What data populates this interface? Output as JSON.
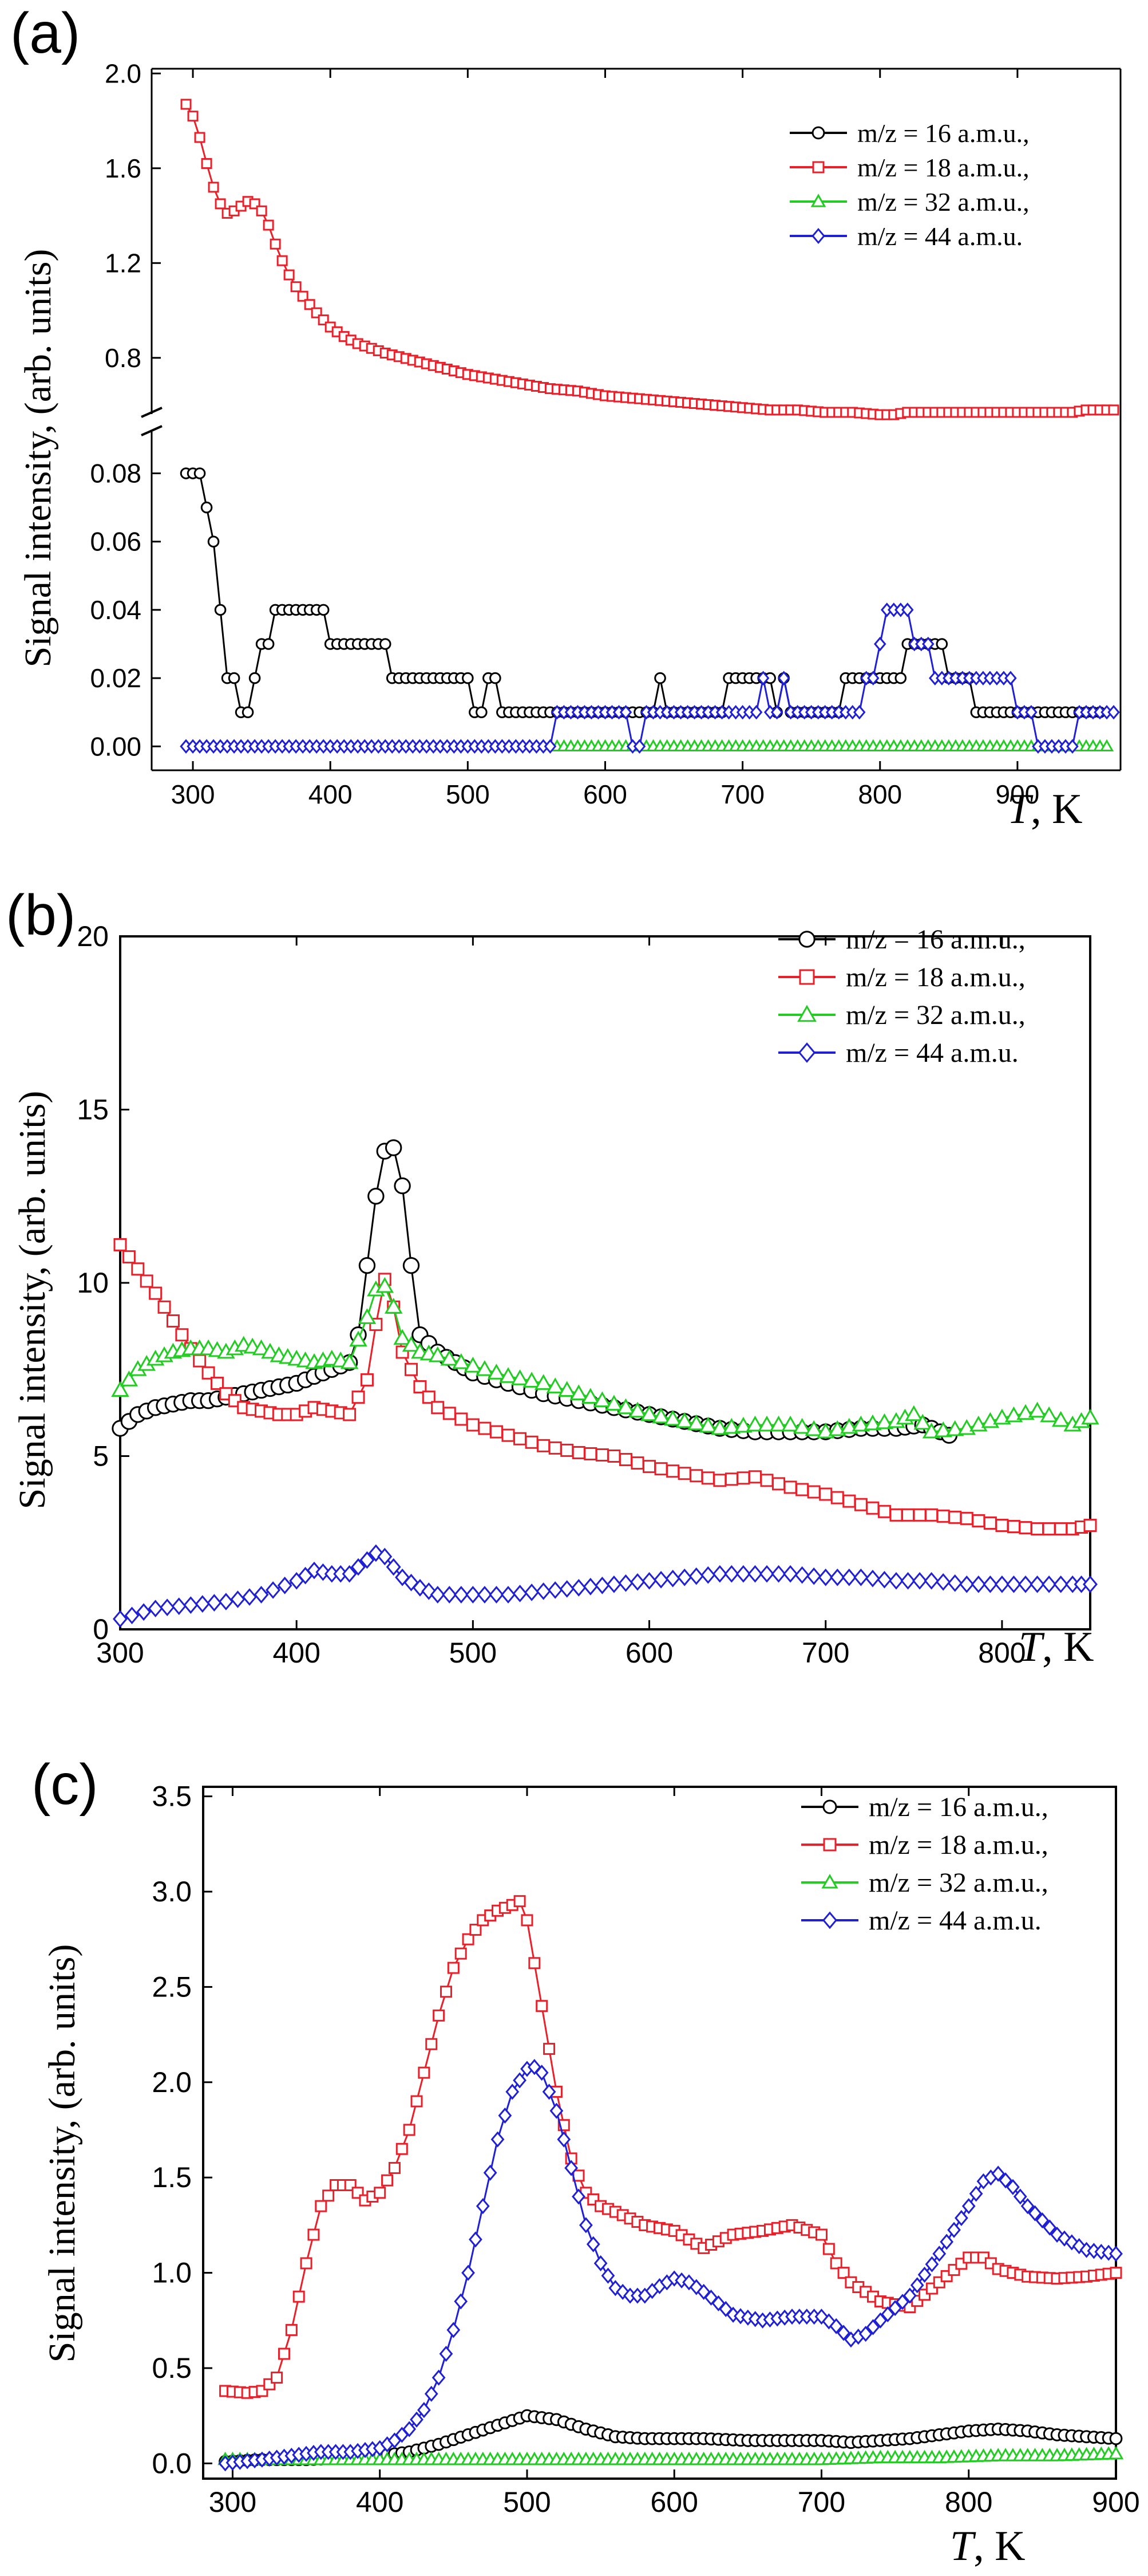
{
  "chart_data": [
    {
      "type": "line",
      "panel_label": "(a)",
      "ylabel": "Signal intensity, (arb. units)",
      "xlabel_italic": "T",
      "xlabel_unit": ", K",
      "xlim": [
        270,
        975
      ],
      "xticks": [
        "300",
        "400",
        "500",
        "600",
        "700",
        "800",
        "900"
      ],
      "ylim_lower": [
        -0.007,
        0.092
      ],
      "ylim_upper": [
        0.57,
        2.02
      ],
      "yticks_lower": [
        "0.00",
        "0.02",
        "0.04",
        "0.06",
        "0.08"
      ],
      "yticks_upper": [
        "0.8",
        "1.2",
        "1.6",
        "2.0"
      ],
      "axis_break": true,
      "legend_position": "top-right",
      "series": [
        {
          "name": "m/z = 16 a.m.u.,",
          "color": "#000000",
          "marker": "circle",
          "x": [
            295,
            305,
            310,
            315,
            320,
            325,
            330,
            335,
            340,
            345,
            350,
            355,
            360,
            375,
            390,
            400,
            410,
            420,
            430,
            445,
            460,
            480,
            500,
            505,
            510,
            515,
            520,
            525,
            540,
            560,
            580,
            600,
            620,
            635,
            640,
            645,
            650,
            680,
            690,
            700,
            715,
            720,
            725,
            730,
            735,
            745,
            760,
            770,
            775,
            785,
            800,
            820,
            840,
            850,
            860,
            870,
            880,
            900,
            920,
            940,
            960
          ],
          "y": [
            0.08,
            0.08,
            0.07,
            0.06,
            0.04,
            0.02,
            0.02,
            0.01,
            0.01,
            0.02,
            0.03,
            0.03,
            0.04,
            0.04,
            0.04,
            0.03,
            0.03,
            0.03,
            0.03,
            0.02,
            0.02,
            0.02,
            0.02,
            0.01,
            0.01,
            0.02,
            0.02,
            0.01,
            0.01,
            0.01,
            0.01,
            0.01,
            0.01,
            0.01,
            0.02,
            0.01,
            0.01,
            0.01,
            0.02,
            0.02,
            0.02,
            0.02,
            0.01,
            0.02,
            0.01,
            0.01,
            0.01,
            0.01,
            0.02,
            0.02,
            0.02,
            0.03,
            0.03,
            0.02,
            0.02,
            0.01,
            0.01,
            0.01,
            0.01,
            0.01,
            0.01
          ]
        },
        {
          "name": "m/z = 18 a.m.u.,",
          "color": "#e8202a",
          "marker": "square",
          "x": [
            295,
            300,
            305,
            310,
            315,
            320,
            325,
            330,
            335,
            340,
            345,
            350,
            355,
            360,
            365,
            370,
            375,
            380,
            390,
            400,
            410,
            420,
            440,
            460,
            480,
            500,
            520,
            540,
            560,
            580,
            600,
            620,
            640,
            660,
            680,
            700,
            720,
            740,
            760,
            780,
            800,
            810,
            820,
            840,
            860,
            880,
            900,
            920,
            940,
            950,
            960,
            970
          ],
          "y": [
            1.87,
            1.82,
            1.73,
            1.62,
            1.52,
            1.45,
            1.41,
            1.42,
            1.44,
            1.46,
            1.45,
            1.42,
            1.36,
            1.28,
            1.21,
            1.15,
            1.1,
            1.06,
            0.99,
            0.93,
            0.89,
            0.86,
            0.82,
            0.79,
            0.76,
            0.73,
            0.71,
            0.69,
            0.67,
            0.66,
            0.64,
            0.63,
            0.62,
            0.61,
            0.6,
            0.59,
            0.58,
            0.58,
            0.57,
            0.57,
            0.56,
            0.56,
            0.57,
            0.57,
            0.57,
            0.57,
            0.57,
            0.57,
            0.57,
            0.58,
            0.58,
            0.58
          ]
        },
        {
          "name": "m/z = 32 a.m.u.,",
          "color": "#22cc22",
          "marker": "triangle",
          "x": [
            565,
            600,
            650,
            700,
            750,
            800,
            850,
            900,
            950,
            965
          ],
          "y": [
            0.0,
            0.0,
            0.0,
            0.0,
            0.0,
            0.0,
            0.0,
            0.0,
            0.0,
            0.0
          ]
        },
        {
          "name": "m/z = 44 a.m.u.",
          "color": "#1f1fd6",
          "marker": "diamond",
          "x": [
            295,
            350,
            400,
            450,
            500,
            560,
            565,
            600,
            615,
            620,
            625,
            630,
            650,
            700,
            710,
            715,
            720,
            725,
            730,
            735,
            740,
            760,
            780,
            790,
            800,
            805,
            810,
            815,
            820,
            825,
            830,
            840,
            860,
            880,
            900,
            910,
            915,
            940,
            945,
            970
          ],
          "y": [
            0,
            0,
            0,
            0,
            0,
            0,
            0.01,
            0.01,
            0.01,
            0.0,
            0.0,
            0.01,
            0.01,
            0.01,
            0.01,
            0.02,
            0.01,
            0.01,
            0.02,
            0.01,
            0.01,
            0.01,
            0.01,
            0.02,
            0.03,
            0.04,
            0.04,
            0.04,
            0.04,
            0.03,
            0.03,
            0.02,
            0.02,
            0.02,
            0.01,
            0.01,
            0.0,
            0.0,
            0.01,
            0.01
          ]
        }
      ]
    },
    {
      "type": "line",
      "panel_label": "(b)",
      "ylabel": "Signal intensity, (arb. units)",
      "xlabel_italic": "T",
      "xlabel_unit": ", K",
      "xlim": [
        300,
        850
      ],
      "ylim": [
        0,
        20
      ],
      "xticks": [
        "300",
        "400",
        "500",
        "600",
        "700",
        "800"
      ],
      "yticks": [
        "0",
        "5",
        "10",
        "15",
        "20"
      ],
      "legend_position": "top-right",
      "series": [
        {
          "name": "m/z = 16 a.m.u.,",
          "color": "#000000",
          "marker": "circle",
          "x": [
            300,
            310,
            320,
            330,
            340,
            350,
            360,
            370,
            380,
            390,
            400,
            410,
            420,
            430,
            435,
            440,
            445,
            450,
            455,
            460,
            465,
            470,
            480,
            490,
            500,
            520,
            540,
            560,
            580,
            600,
            620,
            640,
            660,
            680,
            700,
            720,
            740,
            755,
            770
          ],
          "y": [
            5.8,
            6.2,
            6.4,
            6.5,
            6.6,
            6.6,
            6.7,
            6.8,
            6.9,
            7.0,
            7.1,
            7.3,
            7.5,
            7.7,
            8.5,
            10.5,
            12.5,
            13.8,
            13.9,
            12.8,
            10.5,
            8.5,
            8.0,
            7.7,
            7.4,
            7.1,
            6.8,
            6.6,
            6.4,
            6.2,
            6.0,
            5.8,
            5.7,
            5.7,
            5.7,
            5.8,
            5.8,
            5.9,
            5.6
          ]
        },
        {
          "name": "m/z = 18 a.m.u.,",
          "color": "#e8202a",
          "marker": "square",
          "x": [
            300,
            310,
            320,
            330,
            340,
            350,
            360,
            370,
            380,
            390,
            400,
            410,
            420,
            430,
            440,
            445,
            450,
            455,
            460,
            470,
            480,
            500,
            520,
            540,
            560,
            580,
            600,
            620,
            640,
            660,
            680,
            700,
            720,
            740,
            760,
            780,
            800,
            820,
            840,
            850
          ],
          "y": [
            11.1,
            10.4,
            9.7,
            8.9,
            8.1,
            7.4,
            6.8,
            6.4,
            6.3,
            6.2,
            6.2,
            6.4,
            6.3,
            6.2,
            7.2,
            8.8,
            10.1,
            9.3,
            8.0,
            7.0,
            6.4,
            5.9,
            5.6,
            5.3,
            5.1,
            5.0,
            4.7,
            4.5,
            4.3,
            4.4,
            4.1,
            3.9,
            3.6,
            3.3,
            3.3,
            3.2,
            3.0,
            2.9,
            2.9,
            3.0
          ]
        },
        {
          "name": "m/z = 32 a.m.u.,",
          "color": "#22cc22",
          "marker": "triangle",
          "x": [
            300,
            310,
            320,
            330,
            340,
            350,
            360,
            370,
            380,
            390,
            400,
            410,
            420,
            430,
            440,
            445,
            450,
            455,
            460,
            470,
            480,
            500,
            520,
            540,
            560,
            580,
            600,
            620,
            640,
            660,
            680,
            700,
            720,
            740,
            750,
            760,
            780,
            800,
            820,
            840,
            850
          ],
          "y": [
            6.9,
            7.5,
            7.8,
            8.0,
            8.1,
            8.1,
            8.0,
            8.2,
            8.1,
            7.9,
            7.8,
            7.7,
            7.8,
            7.7,
            9.0,
            9.8,
            9.9,
            9.3,
            8.4,
            8.0,
            7.9,
            7.6,
            7.3,
            7.1,
            6.8,
            6.5,
            6.2,
            6.0,
            5.8,
            5.9,
            5.9,
            5.7,
            5.9,
            6.0,
            6.2,
            5.7,
            5.8,
            6.1,
            6.3,
            5.9,
            6.1
          ]
        },
        {
          "name": "m/z = 44 a.m.u.",
          "color": "#1f1fd6",
          "marker": "diamond",
          "x": [
            300,
            320,
            340,
            360,
            380,
            400,
            410,
            420,
            430,
            440,
            445,
            450,
            455,
            460,
            470,
            480,
            500,
            520,
            540,
            560,
            580,
            600,
            620,
            640,
            660,
            680,
            700,
            720,
            740,
            760,
            780,
            800,
            820,
            840,
            850
          ],
          "y": [
            0.3,
            0.6,
            0.7,
            0.8,
            1.0,
            1.4,
            1.7,
            1.6,
            1.6,
            2.0,
            2.2,
            2.1,
            1.8,
            1.5,
            1.2,
            1.0,
            1.0,
            1.0,
            1.1,
            1.2,
            1.3,
            1.4,
            1.5,
            1.6,
            1.6,
            1.6,
            1.5,
            1.5,
            1.4,
            1.4,
            1.3,
            1.3,
            1.3,
            1.3,
            1.3
          ]
        }
      ]
    },
    {
      "type": "line",
      "panel_label": "(c)",
      "ylabel": "Signal intensity, (arb. units)",
      "xlabel_italic": "T",
      "xlabel_unit": ", K",
      "xlim": [
        280,
        900
      ],
      "ylim": [
        -0.08,
        3.55
      ],
      "xticks": [
        "300",
        "400",
        "500",
        "600",
        "700",
        "800",
        "900"
      ],
      "yticks": [
        "0.0",
        "0.5",
        "1.0",
        "1.5",
        "2.0",
        "2.5",
        "3.0",
        "3.5"
      ],
      "legend_position": "top-right",
      "series": [
        {
          "name": "m/z = 16 a.m.u.,",
          "color": "#000000",
          "marker": "circle",
          "x": [
            295,
            320,
            350,
            380,
            400,
            420,
            440,
            460,
            480,
            500,
            520,
            540,
            560,
            580,
            600,
            620,
            650,
            680,
            700,
            720,
            740,
            760,
            780,
            800,
            820,
            840,
            860,
            880,
            900
          ],
          "y": [
            0.01,
            0.02,
            0.02,
            0.03,
            0.04,
            0.06,
            0.1,
            0.15,
            0.2,
            0.25,
            0.23,
            0.18,
            0.14,
            0.13,
            0.13,
            0.13,
            0.12,
            0.12,
            0.12,
            0.11,
            0.12,
            0.13,
            0.15,
            0.17,
            0.18,
            0.17,
            0.15,
            0.14,
            0.13
          ]
        },
        {
          "name": "m/z = 18 a.m.u.,",
          "color": "#e8202a",
          "marker": "square",
          "x": [
            295,
            310,
            320,
            330,
            340,
            350,
            360,
            370,
            380,
            390,
            400,
            410,
            420,
            430,
            440,
            450,
            460,
            470,
            480,
            490,
            495,
            500,
            510,
            520,
            530,
            540,
            550,
            560,
            580,
            600,
            620,
            640,
            660,
            680,
            700,
            710,
            720,
            740,
            760,
            780,
            800,
            810,
            820,
            840,
            860,
            880,
            900
          ],
          "y": [
            0.38,
            0.37,
            0.38,
            0.45,
            0.7,
            1.05,
            1.35,
            1.46,
            1.46,
            1.38,
            1.42,
            1.55,
            1.75,
            2.05,
            2.35,
            2.6,
            2.75,
            2.85,
            2.9,
            2.93,
            2.95,
            2.85,
            2.4,
            1.95,
            1.6,
            1.42,
            1.35,
            1.32,
            1.25,
            1.22,
            1.13,
            1.2,
            1.22,
            1.25,
            1.2,
            1.05,
            0.95,
            0.85,
            0.82,
            0.95,
            1.08,
            1.08,
            1.02,
            0.98,
            0.97,
            0.98,
            1.0
          ]
        },
        {
          "name": "m/z = 32 a.m.u.,",
          "color": "#22cc22",
          "marker": "triangle",
          "x": [
            295,
            340,
            380,
            420,
            460,
            500,
            540,
            580,
            620,
            660,
            700,
            740,
            780,
            820,
            860,
            900
          ],
          "y": [
            0.02,
            0.02,
            0.02,
            0.02,
            0.02,
            0.02,
            0.02,
            0.02,
            0.02,
            0.02,
            0.02,
            0.03,
            0.03,
            0.04,
            0.04,
            0.05
          ]
        },
        {
          "name": "m/z = 44 a.m.u.",
          "color": "#1f1fd6",
          "marker": "diamond",
          "x": [
            295,
            320,
            340,
            360,
            380,
            400,
            410,
            420,
            430,
            440,
            450,
            460,
            470,
            480,
            490,
            500,
            505,
            510,
            520,
            530,
            540,
            550,
            560,
            570,
            580,
            590,
            600,
            610,
            620,
            640,
            660,
            680,
            700,
            710,
            720,
            730,
            740,
            760,
            780,
            800,
            810,
            820,
            830,
            840,
            860,
            880,
            900
          ],
          "y": [
            0.0,
            0.02,
            0.04,
            0.06,
            0.06,
            0.08,
            0.12,
            0.18,
            0.28,
            0.45,
            0.7,
            1.0,
            1.35,
            1.7,
            1.95,
            2.07,
            2.08,
            2.05,
            1.85,
            1.55,
            1.25,
            1.05,
            0.92,
            0.88,
            0.88,
            0.93,
            0.97,
            0.95,
            0.9,
            0.78,
            0.75,
            0.77,
            0.77,
            0.72,
            0.65,
            0.68,
            0.75,
            0.88,
            1.1,
            1.35,
            1.48,
            1.52,
            1.45,
            1.35,
            1.2,
            1.12,
            1.1
          ]
        }
      ]
    }
  ]
}
